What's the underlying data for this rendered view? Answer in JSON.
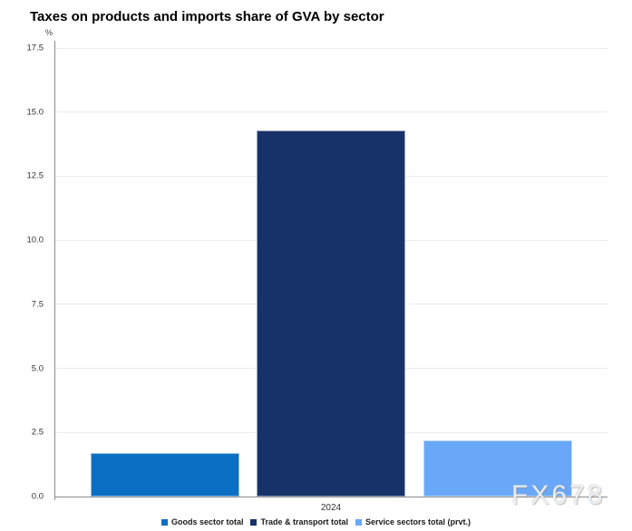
{
  "header": {
    "title": "Taxes on products and imports share of GVA by sector"
  },
  "y_axis": {
    "unit": "%",
    "ticks": [
      {
        "value": 17.5,
        "label": "17.5"
      },
      {
        "value": 15.0,
        "label": "15.0"
      },
      {
        "value": 12.5,
        "label": "12.5"
      },
      {
        "value": 10.0,
        "label": "10.0"
      },
      {
        "value": 7.5,
        "label": "7.5"
      },
      {
        "value": 5.0,
        "label": "5.0"
      },
      {
        "value": 2.5,
        "label": "2.5"
      },
      {
        "value": 0.0,
        "label": "0.0"
      }
    ]
  },
  "x_axis": {
    "label": "2024"
  },
  "watermark": {
    "text": "FX678"
  },
  "chart_data": {
    "type": "bar",
    "title": "Taxes on products and imports share of GVA by sector",
    "categories": [
      "2024"
    ],
    "series": [
      {
        "name": "Goods sector total",
        "color": "#0b6fc4",
        "values": [
          1.7
        ]
      },
      {
        "name": "Trade & transport total",
        "color": "#163268",
        "values": [
          14.3
        ]
      },
      {
        "name": "Service sectors total (prvt.)",
        "color": "#69a8f9",
        "values": [
          2.2
        ]
      }
    ],
    "xlabel": "2024",
    "ylabel": "%",
    "ylim": [
      0,
      17.5
    ],
    "ytick_step": 2.5,
    "grid": true,
    "legend_position": "bottom"
  }
}
